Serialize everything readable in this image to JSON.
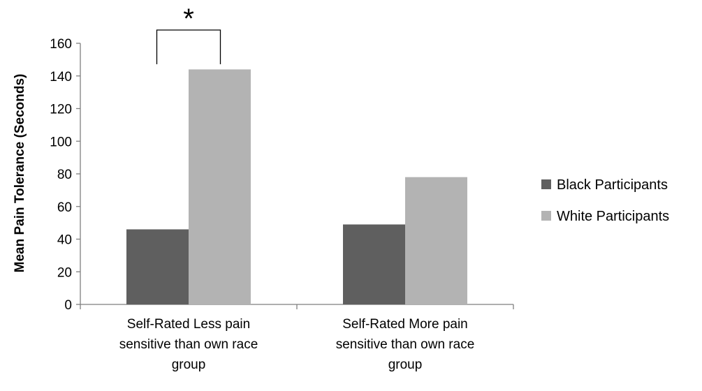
{
  "chart_data": {
    "type": "bar",
    "categories": [
      [
        "Self-Rated Less pain",
        "sensitive than own race",
        "group"
      ],
      [
        "Self-Rated More pain",
        "sensitive than own race",
        "group"
      ]
    ],
    "series": [
      {
        "name": "Black Participants",
        "values": [
          46,
          49
        ],
        "color": "#5f5f5f"
      },
      {
        "name": "White Participants",
        "values": [
          144,
          78
        ],
        "color": "#b3b3b3"
      }
    ],
    "ylabel": "Mean Pain Tolerance (Seconds)",
    "xlabel": "",
    "ylim": [
      0,
      160
    ],
    "yticks": [
      0,
      20,
      40,
      60,
      80,
      100,
      120,
      140,
      160
    ],
    "grid": false,
    "legend_position": "right",
    "annotation": {
      "text": "*",
      "category_index": 0
    }
  }
}
